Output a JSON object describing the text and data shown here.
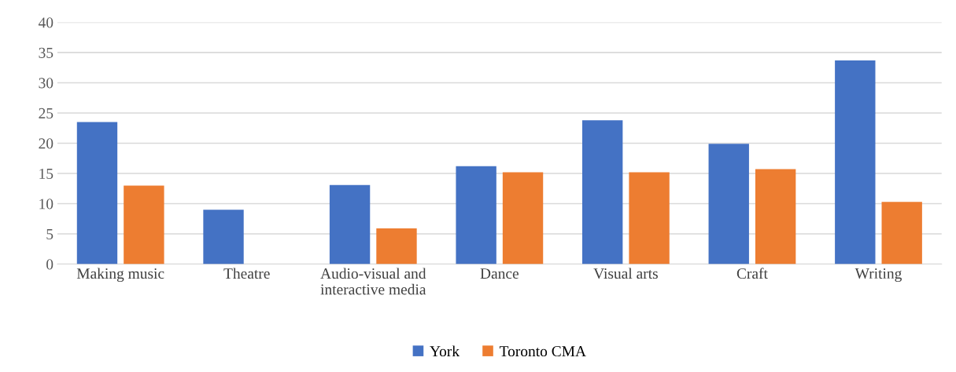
{
  "chart_data": {
    "type": "bar",
    "categories": [
      "Making music",
      "Theatre",
      "Audio-visual and\ninteractive media",
      "Dance",
      "Visual arts",
      "Craft",
      "Writing"
    ],
    "series": [
      {
        "name": "York",
        "color": "#4472c4",
        "values": [
          23.5,
          9.0,
          13.1,
          16.2,
          23.8,
          19.9,
          33.7
        ]
      },
      {
        "name": "Toronto CMA",
        "color": "#ed7d31",
        "values": [
          13.0,
          null,
          5.9,
          15.2,
          15.2,
          15.7,
          10.3
        ]
      }
    ],
    "ylim": [
      0,
      40
    ],
    "yticks": [
      0,
      5,
      10,
      15,
      20,
      25,
      30,
      35,
      40
    ],
    "grid": "y",
    "legend": "bottom"
  }
}
